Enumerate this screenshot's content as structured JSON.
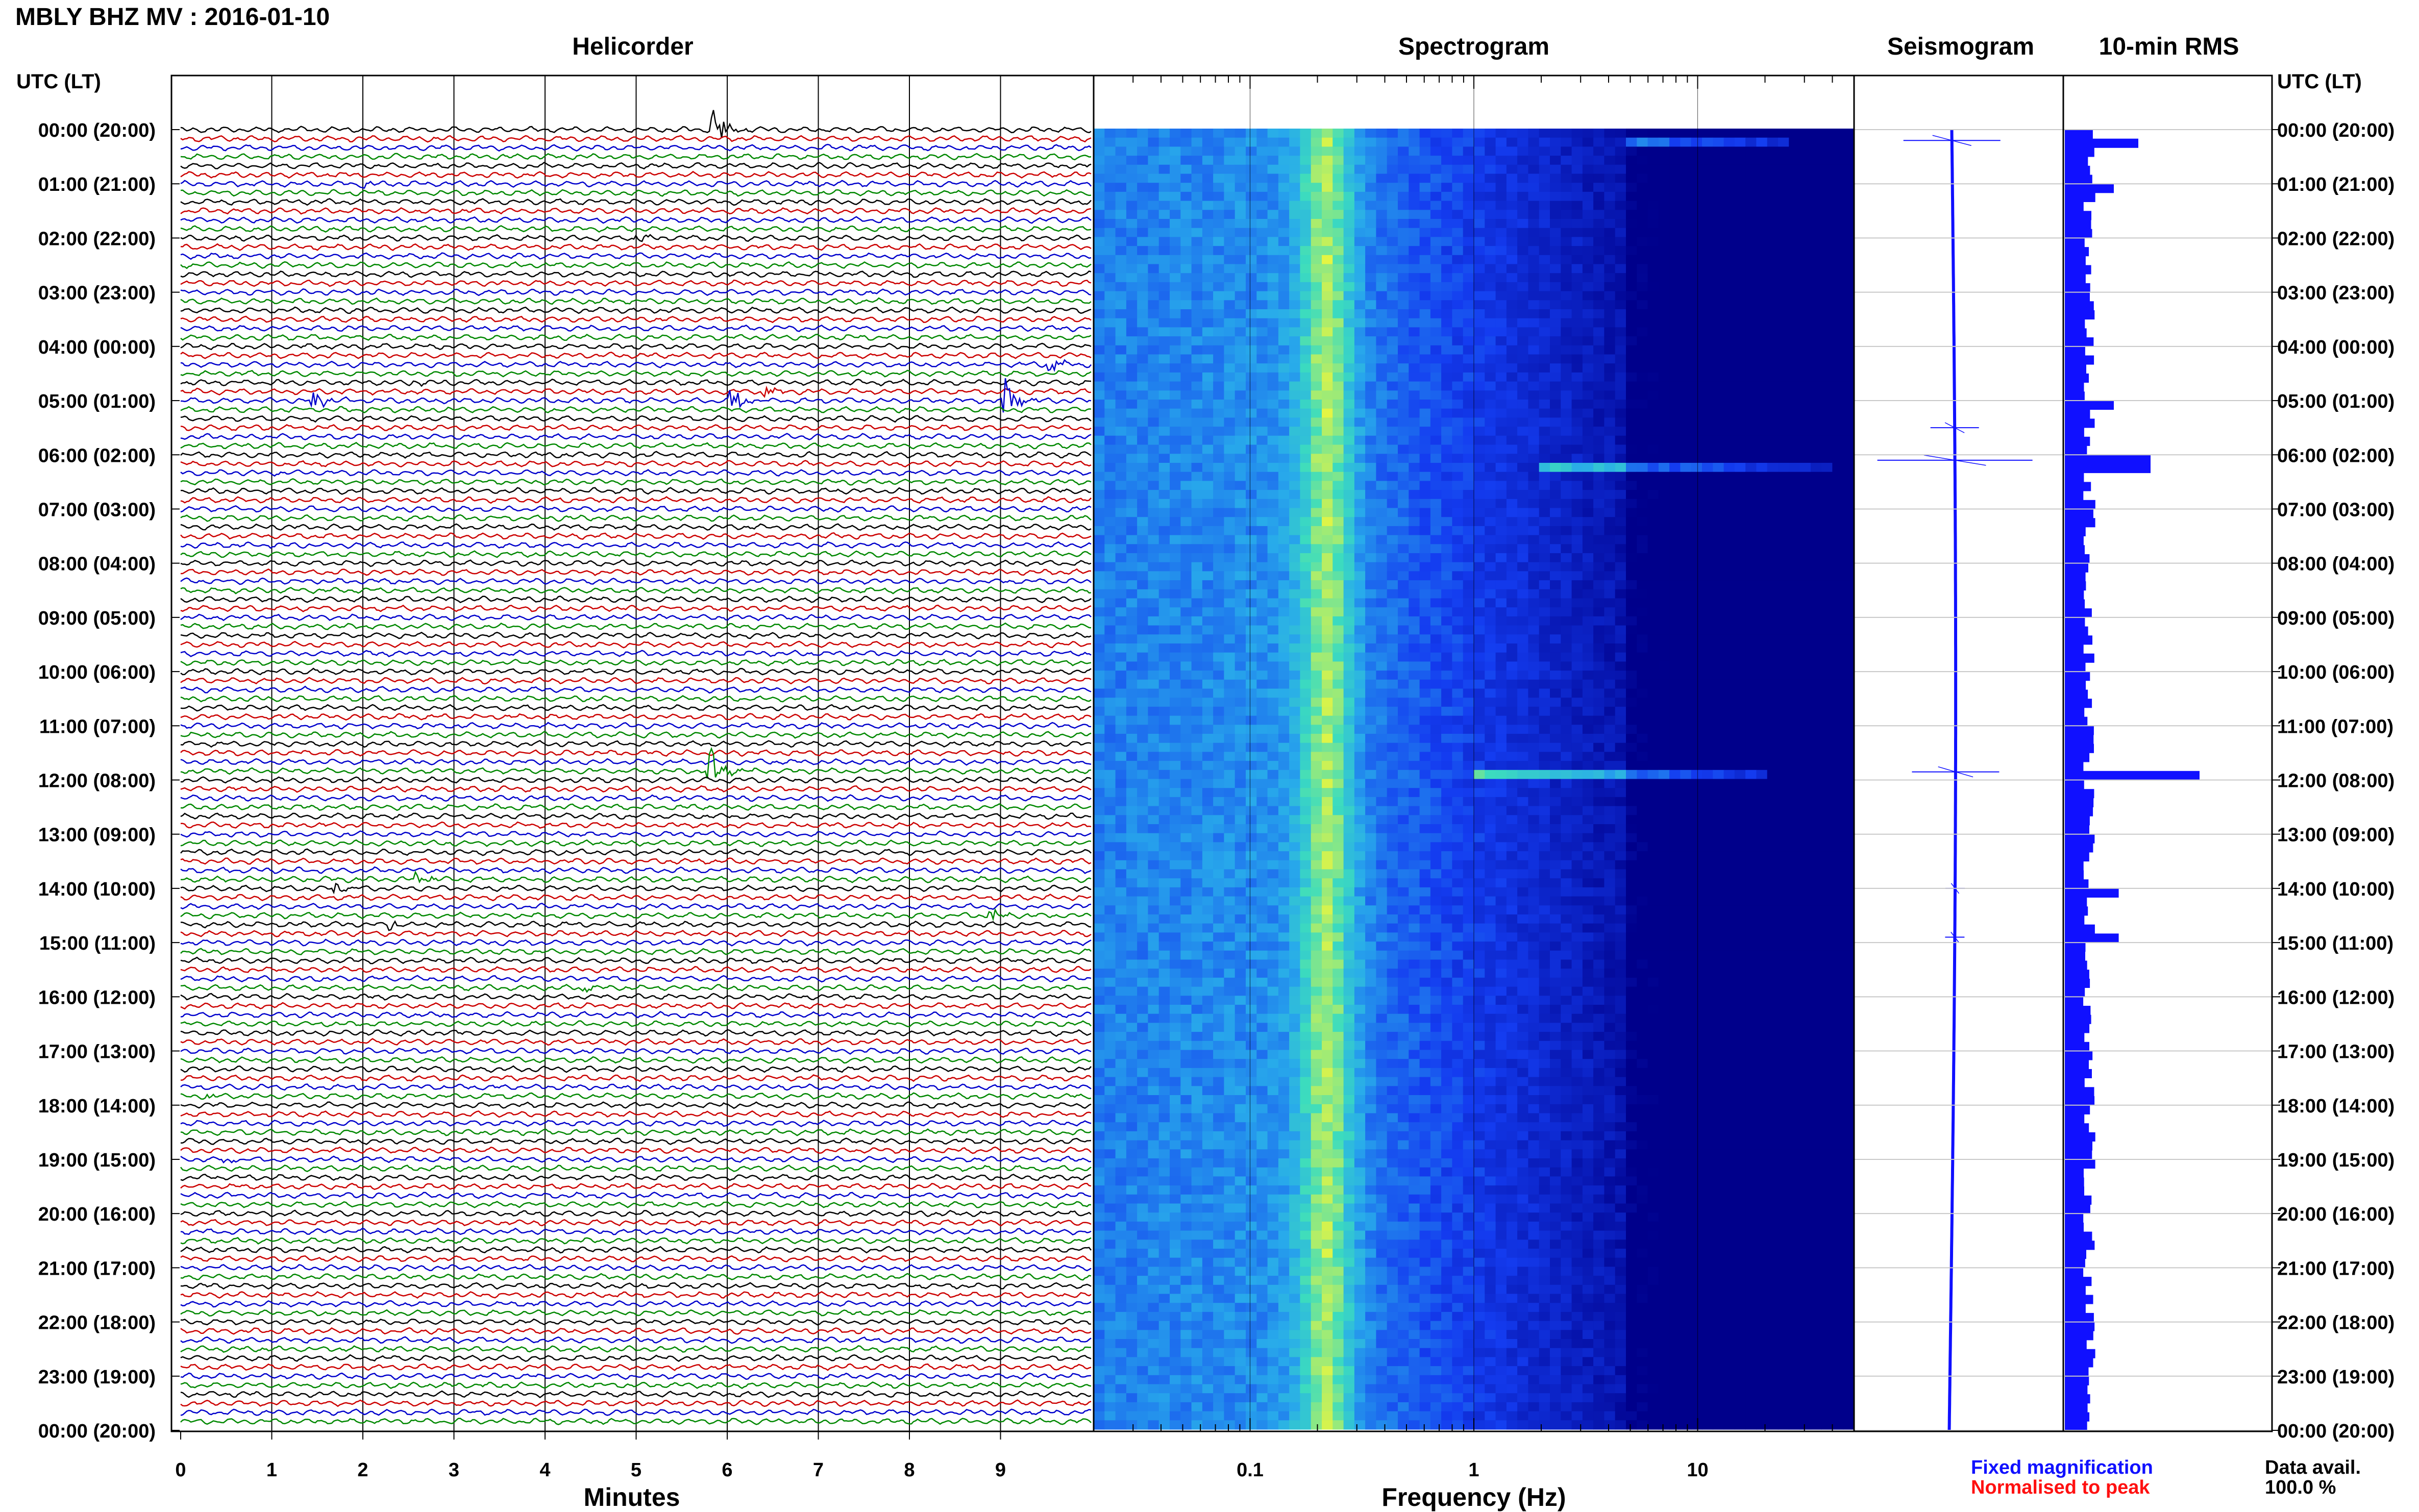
{
  "header": {
    "title": "MBLY BHZ MV : 2016-01-10",
    "time_axis_label": "UTC (LT)"
  },
  "panels": {
    "helicorder": "Helicorder",
    "spectrogram": "Spectrogram",
    "seismogram": "Seismogram",
    "rms": "10-min RMS"
  },
  "legend": {
    "fixed": "Fixed magnification",
    "normalised": "Normalised to peak",
    "fixed_color": "#1010ff",
    "normalised_color": "#ff1010"
  },
  "availability": {
    "label": "Data avail.",
    "value": "100.0 %"
  },
  "colors": {
    "trace_cycle": [
      "#000000",
      "#cc0000",
      "#0000cc",
      "#008800"
    ],
    "spectrogram_low": "#00008b",
    "spectrogram_high": "#e5f542",
    "rms_bar": "#1010ff"
  },
  "chart_data": [
    {
      "type": "line",
      "title": "Helicorder",
      "xlabel": "Minutes",
      "xlim": [
        0,
        10
      ],
      "x_ticks": [
        "0",
        "1",
        "2",
        "3",
        "4",
        "5",
        "6",
        "7",
        "8",
        "9"
      ],
      "rows_per_hour": 6,
      "row_length_minutes": 10,
      "y_ticks": [
        "00:00 (20:00)",
        "01:00 (21:00)",
        "02:00 (22:00)",
        "03:00 (23:00)",
        "04:00 (00:00)",
        "05:00 (01:00)",
        "06:00 (02:00)",
        "07:00 (03:00)",
        "08:00 (04:00)",
        "09:00 (05:00)",
        "10:00 (06:00)",
        "11:00 (07:00)",
        "12:00 (08:00)",
        "13:00 (09:00)",
        "14:00 (10:00)",
        "15:00 (11:00)",
        "16:00 (12:00)",
        "17:00 (13:00)",
        "18:00 (14:00)",
        "19:00 (15:00)",
        "20:00 (16:00)",
        "21:00 (17:00)",
        "22:00 (18:00)",
        "23:00 (19:00)",
        "00:00 (20:00)"
      ],
      "events": [
        {
          "row": 0,
          "minute": 5.85,
          "amp": 3.0
        },
        {
          "row": 6,
          "minute": 2.0,
          "amp": 0.6
        },
        {
          "row": 12,
          "minute": 5.0,
          "amp": 0.5
        },
        {
          "row": 26,
          "minute": 9.55,
          "amp": 1.2
        },
        {
          "row": 28,
          "minute": 2.5,
          "amp": 0.6
        },
        {
          "row": 29,
          "minute": 6.4,
          "amp": 1.0
        },
        {
          "row": 30,
          "minute": 1.45,
          "amp": 1.6
        },
        {
          "row": 30,
          "minute": 6.05,
          "amp": 2.2
        },
        {
          "row": 30,
          "minute": 9.05,
          "amp": 3.0
        },
        {
          "row": 71,
          "minute": 5.8,
          "amp": 3.5
        },
        {
          "row": 83,
          "minute": 2.6,
          "amp": 0.8
        },
        {
          "row": 84,
          "minute": 1.7,
          "amp": 0.6
        },
        {
          "row": 87,
          "minute": 8.9,
          "amp": 0.8
        },
        {
          "row": 88,
          "minute": 2.3,
          "amp": 0.6
        },
        {
          "row": 95,
          "minute": 4.4,
          "amp": 0.5
        },
        {
          "row": 107,
          "minute": 0.3,
          "amp": 0.5
        },
        {
          "row": 114,
          "minute": 0.5,
          "amp": 0.6
        }
      ]
    },
    {
      "type": "heatmap",
      "title": "Spectrogram",
      "xlabel": "Frequency (Hz)",
      "x_scale": "log",
      "xlim": [
        0.02,
        50
      ],
      "x_ticks": [
        0.1,
        1,
        10
      ],
      "peak_band_hz": 0.22,
      "bright_lines": [
        {
          "hour": 0.2,
          "fmin": 5,
          "fmax": 25
        },
        {
          "hour": 6.1,
          "fmin": 2,
          "fmax": 40
        },
        {
          "hour": 11.85,
          "fmin": 1,
          "fmax": 20
        }
      ]
    },
    {
      "type": "line",
      "title": "Seismogram",
      "spikes": [
        {
          "hour": 0.2,
          "amp": 1.0
        },
        {
          "hour": 5.5,
          "amp": 0.5
        },
        {
          "hour": 6.1,
          "amp": 1.6
        },
        {
          "hour": 11.85,
          "amp": 0.9
        },
        {
          "hour": 14.0,
          "amp": 0.2
        },
        {
          "hour": 14.9,
          "amp": 0.2
        }
      ]
    },
    {
      "type": "bar",
      "title": "10-min RMS",
      "orientation": "horizontal",
      "bins_per_hour": 6,
      "baseline": 1.0,
      "peaks": [
        {
          "bin": 1,
          "value": 3.0
        },
        {
          "bin": 6,
          "value": 2.0
        },
        {
          "bin": 30,
          "value": 2.0
        },
        {
          "bin": 36,
          "value": 3.5
        },
        {
          "bin": 37,
          "value": 3.5
        },
        {
          "bin": 71,
          "value": 5.5
        },
        {
          "bin": 84,
          "value": 2.2
        },
        {
          "bin": 89,
          "value": 2.2
        }
      ]
    }
  ]
}
